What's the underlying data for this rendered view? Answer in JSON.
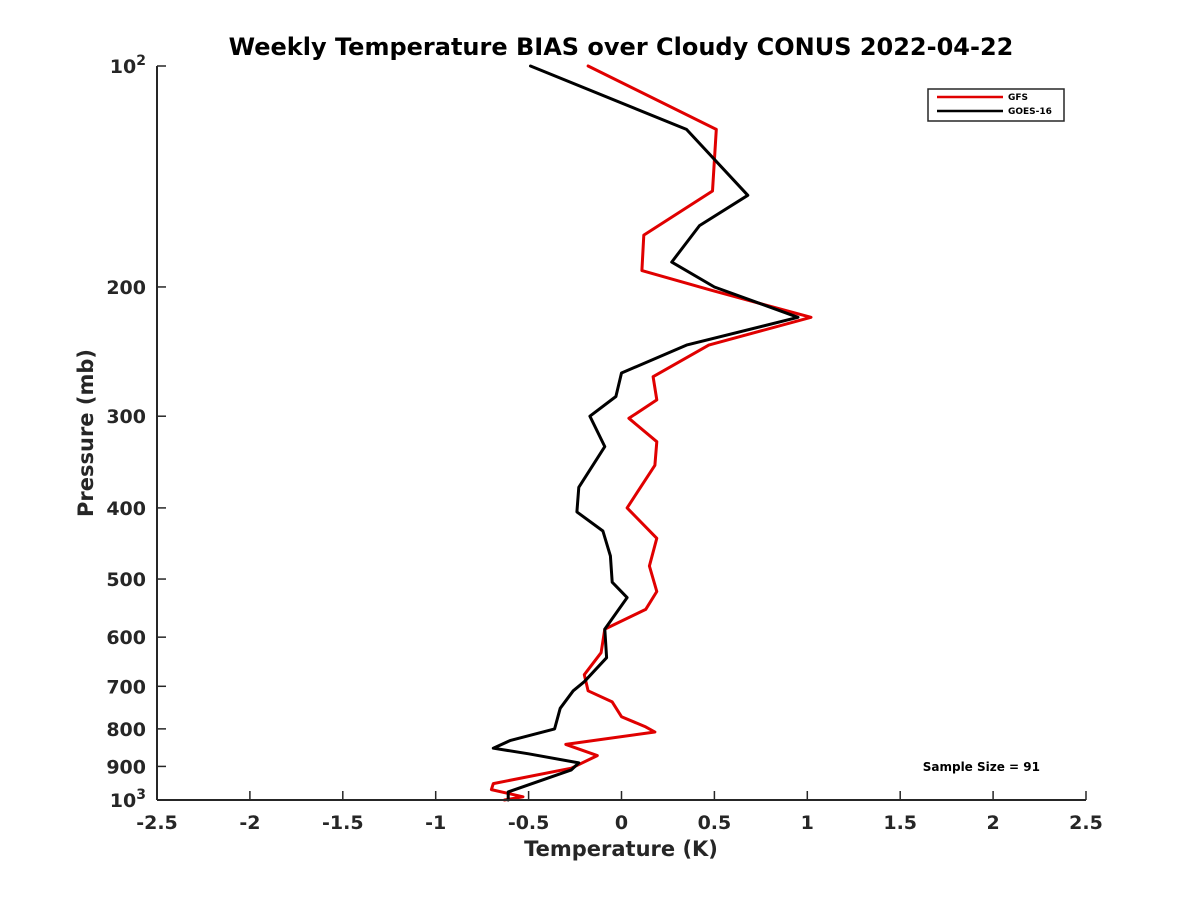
{
  "chart_data": {
    "type": "line",
    "title": "Weekly Temperature BIAS over Cloudy CONUS 2022-04-22",
    "xlabel": "Temperature (K)",
    "ylabel": "Pressure (mb)",
    "xlim": [
      -2.5,
      2.5
    ],
    "ylim": [
      100,
      1000
    ],
    "y_scale": "log",
    "y_reversed": true,
    "grid": false,
    "legend_position": "top-right",
    "x_ticks": [
      -2.5,
      -2,
      -1.5,
      -1,
      -0.5,
      0,
      0.5,
      1,
      1.5,
      2,
      2.5
    ],
    "x_tick_labels": [
      "-2.5",
      "-2",
      "-1.5",
      "-1",
      "-0.5",
      "0",
      "0.5",
      "1",
      "1.5",
      "2",
      "2.5"
    ],
    "y_ticks": [
      100,
      200,
      300,
      400,
      500,
      600,
      700,
      800,
      900,
      1000
    ],
    "y_tick_labels": [
      {
        "base": "10",
        "exp": "2"
      },
      {
        "base": "200",
        "exp": ""
      },
      {
        "base": "300",
        "exp": ""
      },
      {
        "base": "400",
        "exp": ""
      },
      {
        "base": "500",
        "exp": ""
      },
      {
        "base": "600",
        "exp": ""
      },
      {
        "base": "700",
        "exp": ""
      },
      {
        "base": "800",
        "exp": ""
      },
      {
        "base": "900",
        "exp": ""
      },
      {
        "base": "10",
        "exp": "3"
      }
    ],
    "annotation": "Sample Size = 91",
    "series": [
      {
        "name": "GFS",
        "color": "#e00000",
        "points": [
          [
            -0.18,
            100
          ],
          [
            0.51,
            122
          ],
          [
            0.49,
            148
          ],
          [
            0.12,
            170
          ],
          [
            0.11,
            190
          ],
          [
            0.48,
            202
          ],
          [
            1.02,
            220
          ],
          [
            0.47,
            240
          ],
          [
            0.17,
            265
          ],
          [
            0.19,
            285
          ],
          [
            0.04,
            302
          ],
          [
            0.19,
            325
          ],
          [
            0.18,
            350
          ],
          [
            0.03,
            400
          ],
          [
            0.19,
            440
          ],
          [
            0.15,
            480
          ],
          [
            0.19,
            520
          ],
          [
            0.13,
            550
          ],
          [
            -0.09,
            585
          ],
          [
            -0.11,
            630
          ],
          [
            -0.2,
            675
          ],
          [
            -0.18,
            710
          ],
          [
            -0.05,
            735
          ],
          [
            0.0,
            770
          ],
          [
            0.13,
            795
          ],
          [
            0.18,
            808
          ],
          [
            -0.3,
            840
          ],
          [
            -0.13,
            870
          ],
          [
            -0.27,
            905
          ],
          [
            -0.69,
            950
          ],
          [
            -0.7,
            968
          ],
          [
            -0.53,
            990
          ],
          [
            -0.63,
            1000
          ]
        ]
      },
      {
        "name": "GOES-16",
        "color": "#000000",
        "points": [
          [
            -0.49,
            100
          ],
          [
            0.35,
            122
          ],
          [
            0.68,
            150
          ],
          [
            0.42,
            165
          ],
          [
            0.27,
            185
          ],
          [
            0.5,
            200
          ],
          [
            0.95,
            220
          ],
          [
            0.35,
            240
          ],
          [
            0.0,
            262
          ],
          [
            -0.03,
            282
          ],
          [
            -0.17,
            300
          ],
          [
            -0.09,
            330
          ],
          [
            -0.23,
            375
          ],
          [
            -0.24,
            405
          ],
          [
            -0.1,
            430
          ],
          [
            -0.06,
            465
          ],
          [
            -0.05,
            505
          ],
          [
            0.03,
            530
          ],
          [
            -0.09,
            585
          ],
          [
            -0.08,
            640
          ],
          [
            -0.2,
            690
          ],
          [
            -0.26,
            710
          ],
          [
            -0.33,
            750
          ],
          [
            -0.36,
            800
          ],
          [
            -0.6,
            830
          ],
          [
            -0.69,
            850
          ],
          [
            -0.5,
            865
          ],
          [
            -0.23,
            890
          ],
          [
            -0.27,
            910
          ],
          [
            -0.61,
            975
          ],
          [
            -0.61,
            1000
          ]
        ]
      }
    ]
  }
}
